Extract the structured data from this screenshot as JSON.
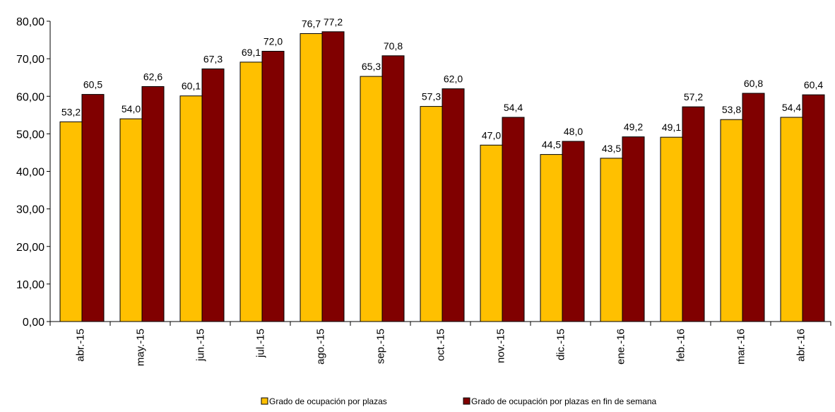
{
  "chart_data": {
    "type": "bar",
    "categories": [
      "abr.-15",
      "may.-15",
      "jun.-15",
      "jul.-15",
      "ago.-15",
      "sep.-15",
      "oct.-15",
      "nov.-15",
      "dic.-15",
      "ene.-16",
      "feb.-16",
      "mar.-16",
      "abr.-16"
    ],
    "series": [
      {
        "name": "Grado de ocupación por plazas",
        "color": "#FFC000",
        "values": [
          53.2,
          54.0,
          60.1,
          69.1,
          76.7,
          65.3,
          57.3,
          47.0,
          44.5,
          43.5,
          49.1,
          53.8,
          54.4
        ],
        "labels": [
          "53,2",
          "54,0",
          "60,1",
          "69,1",
          "76,7",
          "65,3",
          "57,3",
          "47,0",
          "44,5",
          "43,5",
          "49,1",
          "53,8",
          "54,4"
        ]
      },
      {
        "name": "Grado de ocupación por plazas en fin de semana",
        "color": "#800000",
        "values": [
          60.5,
          62.6,
          67.3,
          72.0,
          77.2,
          70.8,
          62.0,
          54.4,
          48.0,
          49.2,
          57.2,
          60.8,
          60.4
        ],
        "labels": [
          "60,5",
          "62,6",
          "67,3",
          "72,0",
          "77,2",
          "70,8",
          "62,0",
          "54,4",
          "48,0",
          "49,2",
          "57,2",
          "60,8",
          "60,4"
        ]
      }
    ],
    "ylim": [
      0,
      80
    ],
    "yticks": [
      0,
      10,
      20,
      30,
      40,
      50,
      60,
      70,
      80
    ],
    "ytick_labels": [
      "0,00",
      "10,00",
      "20,00",
      "30,00",
      "40,00",
      "50,00",
      "60,00",
      "70,00",
      "80,00"
    ],
    "title": "",
    "xlabel": "",
    "ylabel": "",
    "grid": false,
    "legend": "bottom"
  }
}
